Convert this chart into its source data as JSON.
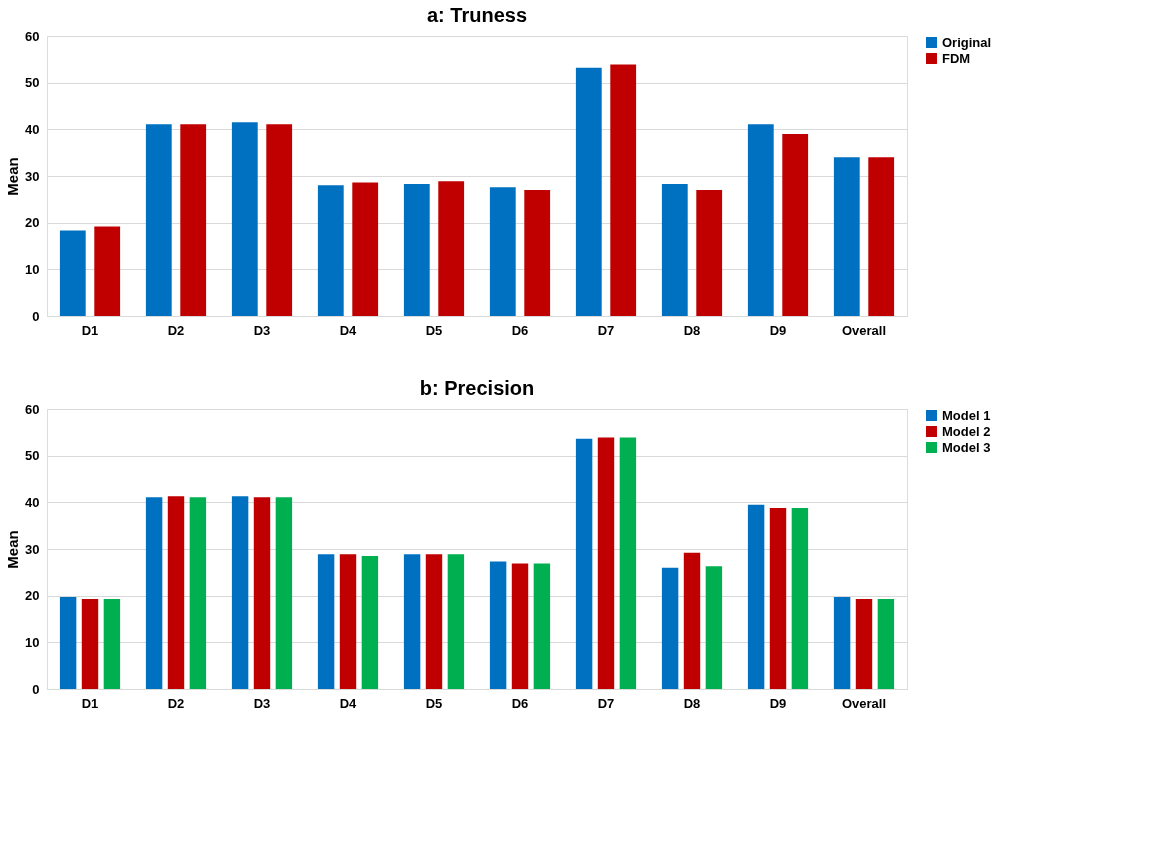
{
  "chart_data": [
    {
      "type": "bar",
      "title": "a: Truness",
      "ylabel": "Mean",
      "categories": [
        "D1",
        "D2",
        "D3",
        "D4",
        "D5",
        "D6",
        "D7",
        "D8",
        "D9",
        "Overall"
      ],
      "ylim": [
        0,
        60
      ],
      "yticks": [
        0,
        10,
        20,
        30,
        40,
        50,
        60
      ],
      "grid": "y",
      "legend": "right",
      "series": [
        {
          "name": "Original",
          "color": "#0070c0",
          "values": [
            18.3,
            41.1,
            41.5,
            28.0,
            28.3,
            27.6,
            53.2,
            28.3,
            41.1,
            34.0
          ]
        },
        {
          "name": "FDM",
          "color": "#c00000",
          "values": [
            19.2,
            41.1,
            41.1,
            28.6,
            28.9,
            27.0,
            53.9,
            27.0,
            39.0,
            34.0
          ]
        }
      ]
    },
    {
      "type": "bar",
      "title": "b: Precision",
      "ylabel": "Mean",
      "categories": [
        "D1",
        "D2",
        "D3",
        "D4",
        "D5",
        "D6",
        "D7",
        "D8",
        "D9",
        "Overall"
      ],
      "ylim": [
        0,
        60
      ],
      "yticks": [
        0,
        10,
        20,
        30,
        40,
        50,
        60
      ],
      "grid": "y",
      "legend": "right",
      "series": [
        {
          "name": "Model 1",
          "color": "#0070c0",
          "values": [
            19.7,
            41.1,
            41.3,
            28.9,
            28.9,
            27.3,
            53.6,
            26.0,
            39.5,
            19.7
          ]
        },
        {
          "name": "Model 2",
          "color": "#c00000",
          "values": [
            19.3,
            41.3,
            41.1,
            28.9,
            28.9,
            26.9,
            53.9,
            29.2,
            38.8,
            19.3
          ]
        },
        {
          "name": "Model 3",
          "color": "#00b050",
          "values": [
            19.3,
            41.1,
            41.1,
            28.5,
            28.9,
            26.9,
            53.9,
            26.3,
            38.8,
            19.3
          ]
        }
      ]
    }
  ]
}
